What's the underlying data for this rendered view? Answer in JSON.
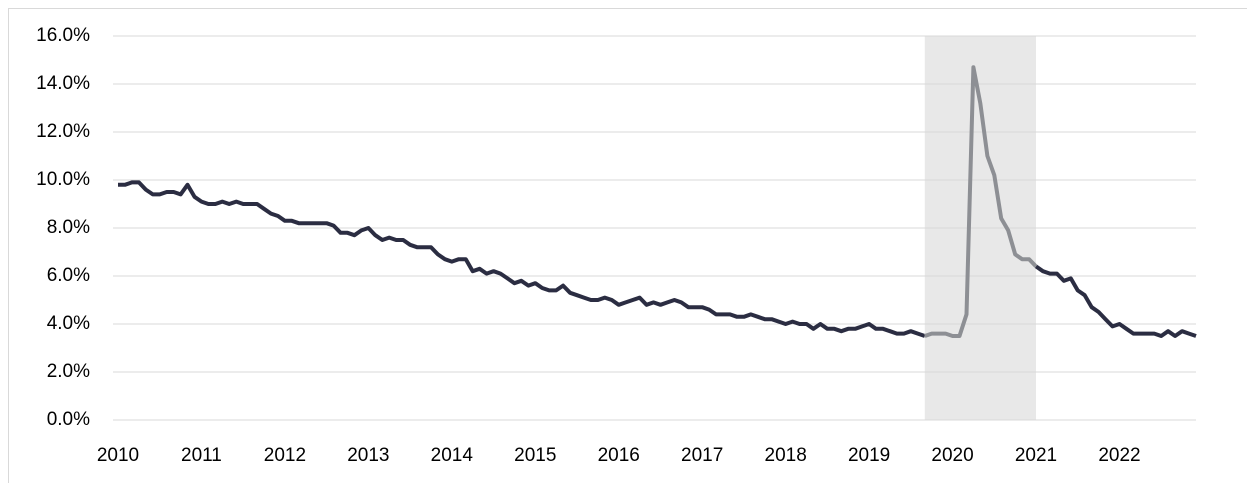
{
  "chart_data": {
    "type": "line",
    "x": [
      2010,
      2010.083,
      2010.167,
      2010.25,
      2010.333,
      2010.417,
      2010.5,
      2010.583,
      2010.667,
      2010.75,
      2010.833,
      2010.917,
      2011,
      2011.083,
      2011.167,
      2011.25,
      2011.333,
      2011.417,
      2011.5,
      2011.583,
      2011.667,
      2011.75,
      2011.833,
      2011.917,
      2012,
      2012.083,
      2012.167,
      2012.25,
      2012.333,
      2012.417,
      2012.5,
      2012.583,
      2012.667,
      2012.75,
      2012.833,
      2012.917,
      2013,
      2013.083,
      2013.167,
      2013.25,
      2013.333,
      2013.417,
      2013.5,
      2013.583,
      2013.667,
      2013.75,
      2013.833,
      2013.917,
      2014,
      2014.083,
      2014.167,
      2014.25,
      2014.333,
      2014.417,
      2014.5,
      2014.583,
      2014.667,
      2014.75,
      2014.833,
      2014.917,
      2015,
      2015.083,
      2015.167,
      2015.25,
      2015.333,
      2015.417,
      2015.5,
      2015.583,
      2015.667,
      2015.75,
      2015.833,
      2015.917,
      2016,
      2016.083,
      2016.167,
      2016.25,
      2016.333,
      2016.417,
      2016.5,
      2016.583,
      2016.667,
      2016.75,
      2016.833,
      2016.917,
      2017,
      2017.083,
      2017.167,
      2017.25,
      2017.333,
      2017.417,
      2017.5,
      2017.583,
      2017.667,
      2017.75,
      2017.833,
      2017.917,
      2018,
      2018.083,
      2018.167,
      2018.25,
      2018.333,
      2018.417,
      2018.5,
      2018.583,
      2018.667,
      2018.75,
      2018.833,
      2018.917,
      2019,
      2019.083,
      2019.167,
      2019.25,
      2019.333,
      2019.417,
      2019.5,
      2019.583,
      2019.667,
      2019.75,
      2019.833,
      2019.917,
      2020,
      2020.083,
      2020.167,
      2020.25,
      2020.333,
      2020.417,
      2020.5,
      2020.583,
      2020.667,
      2020.75,
      2020.833,
      2020.917,
      2021,
      2021.083,
      2021.167,
      2021.25,
      2021.333,
      2021.417,
      2021.5,
      2021.583,
      2021.667,
      2021.75,
      2021.833,
      2021.917,
      2022,
      2022.083,
      2022.167,
      2022.25,
      2022.333,
      2022.417,
      2022.5,
      2022.583,
      2022.667,
      2022.75,
      2022.833,
      2022.917
    ],
    "series": [
      {
        "color": "#2b2d42",
        "values": [
          9.8,
          9.8,
          9.9,
          9.9,
          9.6,
          9.4,
          9.4,
          9.5,
          9.5,
          9.4,
          9.8,
          9.3,
          9.1,
          9.0,
          9.0,
          9.1,
          9.0,
          9.1,
          9.0,
          9.0,
          9.0,
          8.8,
          8.6,
          8.5,
          8.3,
          8.3,
          8.2,
          8.2,
          8.2,
          8.2,
          8.2,
          8.1,
          7.8,
          7.8,
          7.7,
          7.9,
          8.0,
          7.7,
          7.5,
          7.6,
          7.5,
          7.5,
          7.3,
          7.2,
          7.2,
          7.2,
          6.9,
          6.7,
          6.6,
          6.7,
          6.7,
          6.2,
          6.3,
          6.1,
          6.2,
          6.1,
          5.9,
          5.7,
          5.8,
          5.6,
          5.7,
          5.5,
          5.4,
          5.4,
          5.6,
          5.3,
          5.2,
          5.1,
          5.0,
          5.0,
          5.1,
          5.0,
          4.8,
          4.9,
          5.0,
          5.1,
          4.8,
          4.9,
          4.8,
          4.9,
          5.0,
          4.9,
          4.7,
          4.7,
          4.7,
          4.6,
          4.4,
          4.4,
          4.4,
          4.3,
          4.3,
          4.4,
          4.3,
          4.2,
          4.2,
          4.1,
          4.0,
          4.1,
          4.0,
          4.0,
          3.8,
          4.0,
          3.8,
          3.8,
          3.7,
          3.8,
          3.8,
          3.9,
          4.0,
          3.8,
          3.8,
          3.7,
          3.6,
          3.6,
          3.7,
          3.6,
          3.5,
          null,
          null,
          null,
          null,
          null,
          null,
          null,
          null,
          null,
          null,
          null,
          null,
          null,
          null,
          null,
          6.4,
          6.2,
          6.1,
          6.1,
          5.8,
          5.9,
          5.4,
          5.2,
          4.7,
          4.5,
          4.2,
          3.9,
          4.0,
          3.8,
          3.6,
          3.6,
          3.6,
          3.6,
          3.5,
          3.7,
          3.5,
          3.7,
          3.6,
          3.5
        ]
      },
      {
        "color": "#8d8f94",
        "values": [
          null,
          null,
          null,
          null,
          null,
          null,
          null,
          null,
          null,
          null,
          null,
          null,
          null,
          null,
          null,
          null,
          null,
          null,
          null,
          null,
          null,
          null,
          null,
          null,
          null,
          null,
          null,
          null,
          null,
          null,
          null,
          null,
          null,
          null,
          null,
          null,
          null,
          null,
          null,
          null,
          null,
          null,
          null,
          null,
          null,
          null,
          null,
          null,
          null,
          null,
          null,
          null,
          null,
          null,
          null,
          null,
          null,
          null,
          null,
          null,
          null,
          null,
          null,
          null,
          null,
          null,
          null,
          null,
          null,
          null,
          null,
          null,
          null,
          null,
          null,
          null,
          null,
          null,
          null,
          null,
          null,
          null,
          null,
          null,
          null,
          null,
          null,
          null,
          null,
          null,
          null,
          null,
          null,
          null,
          null,
          null,
          null,
          null,
          null,
          null,
          null,
          null,
          null,
          null,
          null,
          null,
          null,
          null,
          null,
          null,
          null,
          null,
          null,
          null,
          null,
          null,
          3.5,
          3.6,
          3.6,
          3.6,
          3.5,
          3.5,
          4.4,
          14.7,
          13.2,
          11.0,
          10.2,
          8.4,
          7.9,
          6.9,
          6.7,
          6.7,
          6.4,
          null,
          null,
          null,
          null,
          null,
          null,
          null,
          null,
          null,
          null,
          null,
          null,
          null,
          null,
          null,
          null,
          null,
          null,
          null,
          null,
          null,
          null,
          null
        ]
      }
    ],
    "highlight_range": [
      2019.667,
      2021
    ],
    "highlight_color": "#e8e8e8",
    "xlim": [
      2010,
      2022.917
    ],
    "xticks": [
      2010,
      2011,
      2012,
      2013,
      2014,
      2015,
      2016,
      2017,
      2018,
      2019,
      2020,
      2021,
      2022
    ],
    "ylim": [
      0,
      16
    ],
    "yticks": [
      {
        "value": 0,
        "label": "0.0%"
      },
      {
        "value": 2,
        "label": "2.0%"
      },
      {
        "value": 4,
        "label": "4.0%"
      },
      {
        "value": 6,
        "label": "6.0%"
      },
      {
        "value": 8,
        "label": "8.0%"
      },
      {
        "value": 10,
        "label": "10.0%"
      },
      {
        "value": 12,
        "label": "12.0%"
      },
      {
        "value": 14,
        "label": "14.0%"
      },
      {
        "value": 16,
        "label": "16.0%"
      }
    ],
    "grid": true
  }
}
